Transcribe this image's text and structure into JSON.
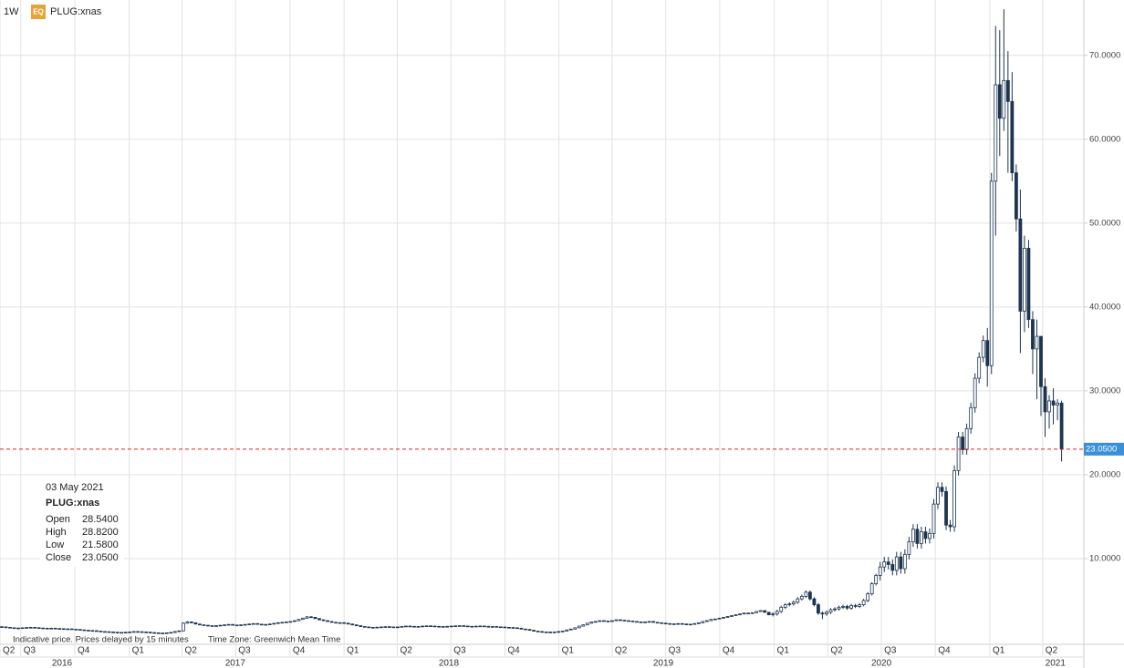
{
  "header": {
    "interval": "1W",
    "badge": "EQ",
    "symbol": "PLUG:xnas"
  },
  "tooltip": {
    "date": "03 May 2021",
    "symbol": "PLUG:xnas",
    "rows": [
      {
        "label": "Open",
        "value": "28.5400"
      },
      {
        "label": "High",
        "value": "28.8200"
      },
      {
        "label": "Low",
        "value": "21.5800"
      },
      {
        "label": "Close",
        "value": "23.0500"
      }
    ]
  },
  "footer": {
    "note": "Indicative price. Prices delayed by 15 minutes",
    "timezone": "Time Zone: Greenwich Mean Time"
  },
  "chart_data": {
    "type": "candlestick",
    "up_color": "#ffffff",
    "down_color": "#1d3550",
    "line_color": "#1d3550",
    "grid": true,
    "ylim": [
      0,
      76.6
    ],
    "yticks": [
      {
        "value": 10,
        "label": "10.0000"
      },
      {
        "value": 20,
        "label": "20.0000"
      },
      {
        "value": 30,
        "label": "30.0000"
      },
      {
        "value": 40,
        "label": "40.0000"
      },
      {
        "value": 50,
        "label": "50.0000"
      },
      {
        "value": 60,
        "label": "60.0000"
      },
      {
        "value": 70,
        "label": "70.0000"
      }
    ],
    "xlim": [
      -0.44,
      262.4
    ],
    "xticks": [
      {
        "value": -0.44,
        "label": "Q2"
      },
      {
        "value": 4.6,
        "label": "Q3"
      },
      {
        "value": 17.7,
        "label": "Q4"
      },
      {
        "value": 30.9,
        "label": "Q1"
      },
      {
        "value": 43.7,
        "label": "Q2"
      },
      {
        "value": 56.7,
        "label": "Q3"
      },
      {
        "value": 69.9,
        "label": "Q4"
      },
      {
        "value": 83.0,
        "label": "Q1"
      },
      {
        "value": 95.9,
        "label": "Q2"
      },
      {
        "value": 108.9,
        "label": "Q3"
      },
      {
        "value": 122.0,
        "label": "Q4"
      },
      {
        "value": 135.1,
        "label": "Q1"
      },
      {
        "value": 148.0,
        "label": "Q2"
      },
      {
        "value": 161.0,
        "label": "Q3"
      },
      {
        "value": 174.1,
        "label": "Q4"
      },
      {
        "value": 187.3,
        "label": "Q1"
      },
      {
        "value": 200.3,
        "label": "Q2"
      },
      {
        "value": 213.3,
        "label": "Q3"
      },
      {
        "value": 226.4,
        "label": "Q4"
      },
      {
        "value": 239.6,
        "label": "Q1"
      },
      {
        "value": 252.4,
        "label": "Q2"
      }
    ],
    "year_labels": [
      {
        "value": 14.6,
        "label": "2016"
      },
      {
        "value": 56.6,
        "label": "2017"
      },
      {
        "value": 108.4,
        "label": "2018"
      },
      {
        "value": 160.4,
        "label": "2019"
      },
      {
        "value": 213.3,
        "label": "2020"
      },
      {
        "value": 255.5,
        "label": "2021"
      }
    ],
    "last_price": {
      "value": 23.05,
      "label": "23.0500",
      "color": "#d9261c",
      "label_color": "#3a8fd8"
    },
    "open": [
      1.88,
      1.85,
      1.8,
      1.75,
      1.7,
      1.72,
      1.75,
      1.78,
      1.8,
      1.76,
      1.72,
      1.7,
      1.68,
      1.7,
      1.66,
      1.64,
      1.6,
      1.62,
      1.58,
      1.55,
      1.5,
      1.45,
      1.42,
      1.4,
      1.35,
      1.3,
      1.28,
      1.25,
      1.22,
      1.2,
      1.18,
      1.22,
      1.25,
      1.3,
      1.28,
      1.25,
      1.22,
      1.18,
      1.15,
      1.12,
      1.1,
      1.15,
      1.2,
      1.3,
      1.38,
      2.3,
      2.45,
      2.35,
      2.2,
      2.1,
      2.05,
      2.0,
      1.95,
      2.0,
      2.05,
      2.1,
      2.15,
      2.08,
      2.05,
      2.1,
      2.15,
      2.2,
      2.25,
      2.18,
      2.1,
      2.15,
      2.2,
      2.28,
      2.35,
      2.4,
      2.45,
      2.5,
      2.6,
      2.75,
      2.9,
      3.05,
      3.0,
      2.85,
      2.7,
      2.6,
      2.5,
      2.4,
      2.35,
      2.36,
      2.3,
      2.2,
      2.1,
      2.0,
      1.9,
      1.85,
      1.8,
      1.78,
      1.82,
      1.85,
      1.88,
      1.85,
      1.8,
      1.85,
      1.9,
      1.95,
      1.92,
      1.88,
      1.9,
      1.95,
      1.98,
      1.95,
      1.92,
      1.9,
      1.88,
      1.92,
      1.95,
      1.98,
      2.0,
      1.96,
      1.92,
      1.9,
      1.94,
      1.96,
      1.92,
      1.88,
      1.9,
      1.86,
      1.84,
      1.8,
      1.78,
      1.75,
      1.7,
      1.6,
      1.55,
      1.45,
      1.35,
      1.3,
      1.25,
      1.2,
      1.24,
      1.22,
      1.3,
      1.35,
      1.5,
      1.6,
      1.75,
      1.95,
      2.1,
      2.3,
      2.45,
      2.5,
      2.6,
      2.55,
      2.5,
      2.6,
      2.7,
      2.65,
      2.6,
      2.55,
      2.5,
      2.45,
      2.4,
      2.45,
      2.5,
      2.4,
      2.35,
      2.3,
      2.25,
      2.2,
      2.22,
      2.25,
      2.2,
      2.15,
      2.18,
      2.25,
      2.35,
      2.5,
      2.6,
      2.75,
      2.8,
      2.9,
      3.0,
      3.1,
      3.2,
      3.3,
      3.4,
      3.5,
      3.45,
      3.55,
      3.7,
      3.8,
      3.6,
      3.3,
      3.4,
      3.7,
      4.2,
      4.5,
      4.6,
      4.8,
      5.2,
      5.5,
      6.0,
      5.2,
      4.5,
      3.5,
      3.4,
      3.6,
      3.9,
      4.0,
      4.2,
      4.3,
      4.1,
      4.4,
      4.3,
      4.5,
      5.0,
      5.8,
      7.0,
      8.0,
      9.0,
      9.6,
      9.3,
      8.6,
      10.2,
      8.8,
      10.5,
      12.0,
      13.5,
      11.8,
      13.2,
      12.4,
      13.0,
      16.5,
      18.5,
      18.0,
      14.0,
      13.8,
      20.5,
      24.5,
      23.0,
      25.5,
      28.0,
      31.5,
      34.0,
      36,
      33,
      55,
      66.5,
      62.5,
      67,
      64.5,
      56,
      50.5,
      39.5,
      47,
      38.5,
      35,
      36.5,
      30.5,
      27.5,
      28.8,
      28.3,
      28.54
    ],
    "high": [
      1.93,
      1.9,
      1.85,
      1.8,
      1.77,
      1.8,
      1.83,
      1.85,
      1.85,
      1.81,
      1.77,
      1.75,
      1.75,
      1.75,
      1.71,
      1.69,
      1.67,
      1.67,
      1.63,
      1.6,
      1.55,
      1.5,
      1.47,
      1.45,
      1.4,
      1.35,
      1.33,
      1.3,
      1.27,
      1.25,
      1.27,
      1.3,
      1.35,
      1.35,
      1.33,
      1.3,
      1.27,
      1.23,
      1.2,
      1.17,
      1.2,
      1.25,
      1.35,
      1.43,
      2.4,
      2.55,
      2.5,
      2.4,
      2.25,
      2.15,
      2.1,
      2.05,
      2.05,
      2.1,
      2.15,
      2.2,
      2.2,
      2.13,
      2.15,
      2.2,
      2.25,
      2.3,
      2.3,
      2.23,
      2.2,
      2.25,
      2.33,
      2.4,
      2.45,
      2.5,
      2.55,
      2.65,
      2.8,
      2.95,
      3.15,
      3.15,
      3.05,
      2.9,
      2.75,
      2.65,
      2.55,
      2.45,
      2.41,
      2.41,
      2.35,
      2.25,
      2.15,
      2.05,
      1.95,
      1.9,
      1.85,
      1.87,
      1.9,
      1.93,
      1.93,
      1.9,
      1.9,
      1.95,
      2.0,
      2.0,
      1.97,
      1.95,
      2.0,
      2.03,
      2.03,
      2.0,
      1.97,
      1.95,
      1.97,
      2.0,
      2.03,
      2.05,
      2.05,
      2.01,
      1.97,
      1.99,
      2.01,
      2.01,
      1.97,
      1.95,
      1.95,
      1.91,
      1.89,
      1.85,
      1.83,
      1.8,
      1.75,
      1.65,
      1.6,
      1.5,
      1.4,
      1.35,
      1.3,
      1.29,
      1.29,
      1.35,
      1.4,
      1.55,
      1.65,
      1.8,
      2.0,
      2.15,
      2.35,
      2.5,
      2.55,
      2.65,
      2.65,
      2.6,
      2.65,
      2.75,
      2.75,
      2.7,
      2.65,
      2.6,
      2.55,
      2.5,
      2.5,
      2.55,
      2.55,
      2.45,
      2.4,
      2.35,
      2.3,
      2.27,
      2.3,
      2.3,
      2.25,
      2.23,
      2.3,
      2.4,
      2.55,
      2.65,
      2.8,
      2.85,
      2.95,
      3.05,
      3.15,
      3.25,
      3.35,
      3.45,
      3.55,
      3.55,
      3.6,
      3.75,
      3.85,
      3.85,
      3.65,
      3.6,
      3.9,
      4.4,
      4.7,
      4.8,
      5.0,
      5.4,
      5.7,
      6.2,
      6.2,
      5.4,
      4.7,
      3.7,
      3.8,
      4.1,
      4.2,
      4.4,
      4.5,
      4.5,
      4.6,
      4.6,
      4.7,
      5.2,
      6.0,
      7.2,
      8.2,
      9.6,
      10.2,
      10.2,
      9.9,
      10.8,
      10.8,
      11.1,
      12.6,
      14.1,
      14.1,
      13.8,
      13.8,
      13.6,
      17.1,
      19.1,
      19.1,
      18.6,
      14.6,
      21.1,
      25.1,
      25.1,
      26.1,
      28.6,
      32.1,
      34.6,
      36.6,
      37.5,
      56,
      73.5,
      73,
      75.5,
      70.5,
      68,
      57,
      54,
      48.5,
      48,
      39.5,
      38.5,
      36.5,
      31.5,
      29.5,
      30.3,
      29,
      28.82
    ],
    "low": [
      1.8,
      1.75,
      1.7,
      1.65,
      1.65,
      1.67,
      1.7,
      1.73,
      1.71,
      1.67,
      1.65,
      1.63,
      1.63,
      1.61,
      1.59,
      1.55,
      1.55,
      1.53,
      1.5,
      1.45,
      1.4,
      1.37,
      1.35,
      1.3,
      1.25,
      1.23,
      1.2,
      1.17,
      1.15,
      1.13,
      1.13,
      1.17,
      1.2,
      1.23,
      1.2,
      1.17,
      1.13,
      1.1,
      1.07,
      1.05,
      1.05,
      1.1,
      1.15,
      1.25,
      1.33,
      2.25,
      2.3,
      2.15,
      2.05,
      2.0,
      1.95,
      1.9,
      1.9,
      1.95,
      2.0,
      2.05,
      2.03,
      2.0,
      2.0,
      2.05,
      2.1,
      2.15,
      2.13,
      2.05,
      2.05,
      2.1,
      2.15,
      2.23,
      2.3,
      2.35,
      2.4,
      2.45,
      2.55,
      2.7,
      2.85,
      2.95,
      2.8,
      2.65,
      2.55,
      2.45,
      2.35,
      2.3,
      2.3,
      2.25,
      2.15,
      2.05,
      1.95,
      1.85,
      1.8,
      1.75,
      1.73,
      1.73,
      1.77,
      1.8,
      1.8,
      1.75,
      1.75,
      1.8,
      1.85,
      1.87,
      1.83,
      1.83,
      1.85,
      1.9,
      1.9,
      1.87,
      1.85,
      1.83,
      1.83,
      1.87,
      1.9,
      1.93,
      1.91,
      1.87,
      1.85,
      1.85,
      1.89,
      1.87,
      1.83,
      1.83,
      1.81,
      1.79,
      1.75,
      1.73,
      1.7,
      1.65,
      1.55,
      1.5,
      1.4,
      1.3,
      1.25,
      1.2,
      1.15,
      1.15,
      1.17,
      1.17,
      1.25,
      1.3,
      1.45,
      1.55,
      1.7,
      1.9,
      2.05,
      2.25,
      2.4,
      2.45,
      2.5,
      2.45,
      2.45,
      2.55,
      2.6,
      2.55,
      2.5,
      2.45,
      2.4,
      2.35,
      2.35,
      2.4,
      2.35,
      2.3,
      2.25,
      2.2,
      2.15,
      2.15,
      2.17,
      2.15,
      2.1,
      2.1,
      2.13,
      2.2,
      2.3,
      2.45,
      2.55,
      2.7,
      2.75,
      2.85,
      2.95,
      3.05,
      3.15,
      3.25,
      3.35,
      3.4,
      3.4,
      3.5,
      3.65,
      3.55,
      3.25,
      3.1,
      3.2,
      3.5,
      4.0,
      4.3,
      4.4,
      4.6,
      5.0,
      5.3,
      5.0,
      4.3,
      3.3,
      2.8,
      3.2,
      3.4,
      3.7,
      3.8,
      4.0,
      3.9,
      3.9,
      4.1,
      4.1,
      4.3,
      4.8,
      5.6,
      6.8,
      7.4,
      8.4,
      8.7,
      8.0,
      8.0,
      8.2,
      8.2,
      9.9,
      11.4,
      11.2,
      11.2,
      11.8,
      11.8,
      12.4,
      15.9,
      17.4,
      13.4,
      13.2,
      13.2,
      19.9,
      22.4,
      22.4,
      24.9,
      27.4,
      30.9,
      33.4,
      30.5,
      32,
      48.5,
      58,
      61,
      56,
      55,
      49,
      34.5,
      37,
      37.5,
      32,
      29,
      27,
      24.5,
      25.5,
      26,
      26.5,
      21.58
    ],
    "close": [
      1.85,
      1.8,
      1.75,
      1.7,
      1.72,
      1.75,
      1.78,
      1.8,
      1.76,
      1.72,
      1.7,
      1.68,
      1.7,
      1.66,
      1.64,
      1.6,
      1.62,
      1.58,
      1.55,
      1.5,
      1.45,
      1.42,
      1.4,
      1.35,
      1.3,
      1.28,
      1.25,
      1.22,
      1.2,
      1.18,
      1.22,
      1.25,
      1.3,
      1.28,
      1.25,
      1.22,
      1.18,
      1.15,
      1.12,
      1.1,
      1.15,
      1.2,
      1.3,
      1.38,
      2.3,
      2.45,
      2.35,
      2.2,
      2.1,
      2.05,
      2.0,
      1.95,
      2.0,
      2.05,
      2.1,
      2.15,
      2.08,
      2.05,
      2.1,
      2.15,
      2.2,
      2.25,
      2.18,
      2.1,
      2.15,
      2.2,
      2.28,
      2.35,
      2.4,
      2.45,
      2.5,
      2.6,
      2.75,
      2.9,
      3.05,
      3.0,
      2.85,
      2.7,
      2.6,
      2.5,
      2.4,
      2.35,
      2.36,
      2.3,
      2.2,
      2.1,
      2.0,
      1.9,
      1.85,
      1.8,
      1.78,
      1.82,
      1.85,
      1.88,
      1.85,
      1.8,
      1.85,
      1.9,
      1.95,
      1.92,
      1.88,
      1.9,
      1.95,
      1.98,
      1.95,
      1.92,
      1.9,
      1.88,
      1.92,
      1.95,
      1.98,
      2.0,
      1.96,
      1.92,
      1.9,
      1.94,
      1.96,
      1.92,
      1.88,
      1.9,
      1.86,
      1.84,
      1.8,
      1.78,
      1.75,
      1.7,
      1.6,
      1.55,
      1.45,
      1.35,
      1.3,
      1.25,
      1.2,
      1.24,
      1.22,
      1.3,
      1.35,
      1.5,
      1.6,
      1.75,
      1.95,
      2.1,
      2.3,
      2.45,
      2.5,
      2.6,
      2.55,
      2.5,
      2.6,
      2.7,
      2.65,
      2.6,
      2.55,
      2.5,
      2.45,
      2.4,
      2.45,
      2.5,
      2.4,
      2.35,
      2.3,
      2.25,
      2.2,
      2.22,
      2.25,
      2.2,
      2.15,
      2.18,
      2.25,
      2.35,
      2.5,
      2.6,
      2.75,
      2.8,
      2.9,
      3.0,
      3.1,
      3.2,
      3.3,
      3.4,
      3.5,
      3.45,
      3.55,
      3.7,
      3.8,
      3.6,
      3.3,
      3.4,
      3.7,
      4.2,
      4.5,
      4.6,
      4.8,
      5.2,
      5.5,
      6.0,
      5.2,
      4.5,
      3.5,
      3.4,
      3.6,
      3.9,
      4.0,
      4.2,
      4.3,
      4.1,
      4.4,
      4.3,
      4.5,
      5.0,
      5.8,
      7.0,
      8.0,
      9.0,
      9.6,
      9.3,
      8.6,
      10.2,
      8.8,
      10.5,
      12.0,
      13.5,
      11.8,
      13.2,
      12.4,
      13.0,
      16.5,
      18.5,
      18.0,
      14.0,
      13.8,
      20.5,
      24.5,
      23.0,
      25.5,
      28.0,
      31.5,
      34.0,
      36.0,
      33,
      55,
      66.5,
      62.5,
      67,
      64.5,
      56,
      50.5,
      39.5,
      47,
      38.5,
      35,
      36.5,
      30.5,
      27.5,
      28.8,
      28.3,
      28.54,
      23.05
    ]
  }
}
